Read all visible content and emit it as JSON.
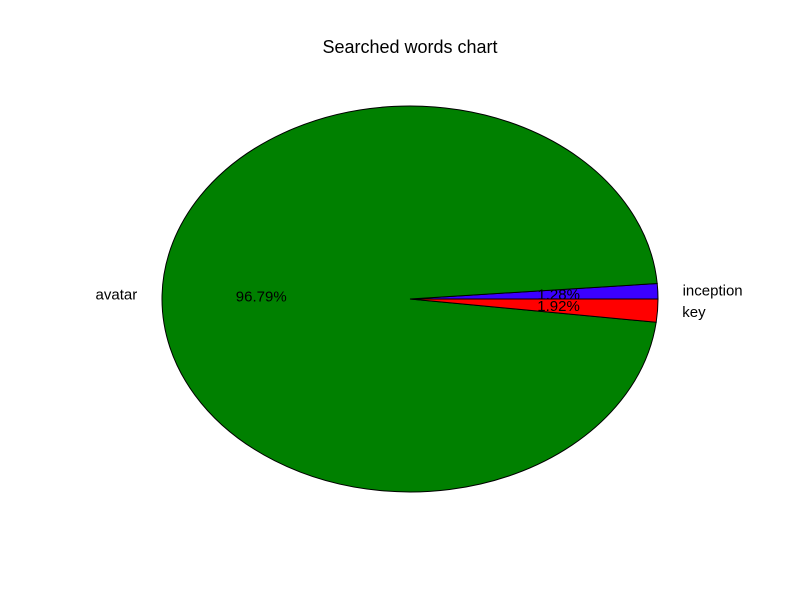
{
  "chart_data": {
    "type": "pie",
    "title": "Searched words chart",
    "start_angle_deg": 0,
    "direction": "counterclockwise",
    "slices": [
      {
        "label": "inception",
        "value": 1.28,
        "pct_label": "1.28%",
        "color": "#3b00ff"
      },
      {
        "label": "avatar",
        "value": 96.79,
        "pct_label": "96.79%",
        "color": "#008000"
      },
      {
        "label": "key",
        "value": 1.92,
        "pct_label": "1.92%",
        "color": "#ff0000"
      }
    ],
    "legend": "none",
    "grid": false
  }
}
